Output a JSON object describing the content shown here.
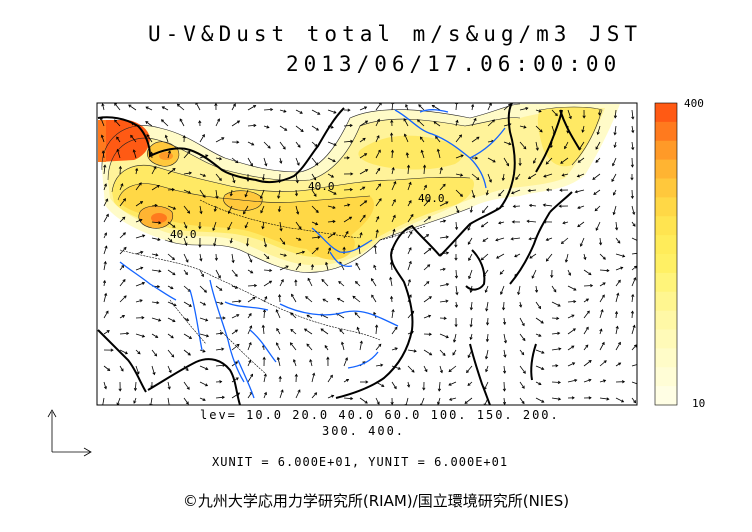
{
  "title": {
    "line1": "U-V&Dust total m/s&ug/m3 JST",
    "line2": "2013/06/17.06:00:00"
  },
  "levels": {
    "line1": "lev= 10.0 20.0 40.0 60.0 100. 150. 200.",
    "line2": "300. 400."
  },
  "units": "XUNIT = 6.000E+01, YUNIT = 6.000E+01",
  "colorbar": {
    "max_label": "400",
    "min_label": "10",
    "colors": [
      "#ff5a14",
      "#ff7a1e",
      "#ff9a28",
      "#ffb432",
      "#ffc83c",
      "#ffd846",
      "#ffe450",
      "#ffec5a",
      "#fff064",
      "#fff47a",
      "#fff690",
      "#fff8a6",
      "#fffab8",
      "#fffcc8",
      "#fffdd6",
      "#fffee4"
    ]
  },
  "contour_labels": [
    "40.0",
    "40.0",
    "40.0"
  ],
  "colors": {
    "coast": "#000000",
    "river": "#1464ff",
    "frame": "#000000"
  },
  "credit": "©九州大学応用力学研究所(RIAM)/国立環境研究所(NIES)"
}
